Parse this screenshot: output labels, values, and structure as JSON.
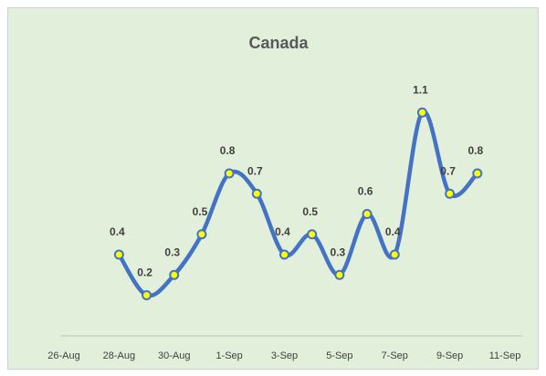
{
  "chart_data": {
    "type": "line",
    "title": "Canada",
    "categories": [
      "26-Aug",
      null,
      "28-Aug",
      null,
      "30-Aug",
      null,
      "1-Sep",
      null,
      "3-Sep",
      null,
      "5-Sep",
      null,
      "7-Sep",
      null,
      "9-Sep",
      null,
      "11-Sep"
    ],
    "series": [
      {
        "name": "Canada",
        "color": "#4472c4",
        "marker_color": "#ffff00",
        "values": [
          null,
          null,
          0.4,
          0.2,
          0.3,
          0.5,
          0.8,
          0.7,
          0.4,
          0.5,
          0.3,
          0.6,
          0.4,
          1.1,
          0.7,
          0.8,
          null
        ]
      }
    ],
    "ylim": [
      0,
      1.2
    ],
    "smooth": true,
    "grid": false,
    "legend": false
  }
}
